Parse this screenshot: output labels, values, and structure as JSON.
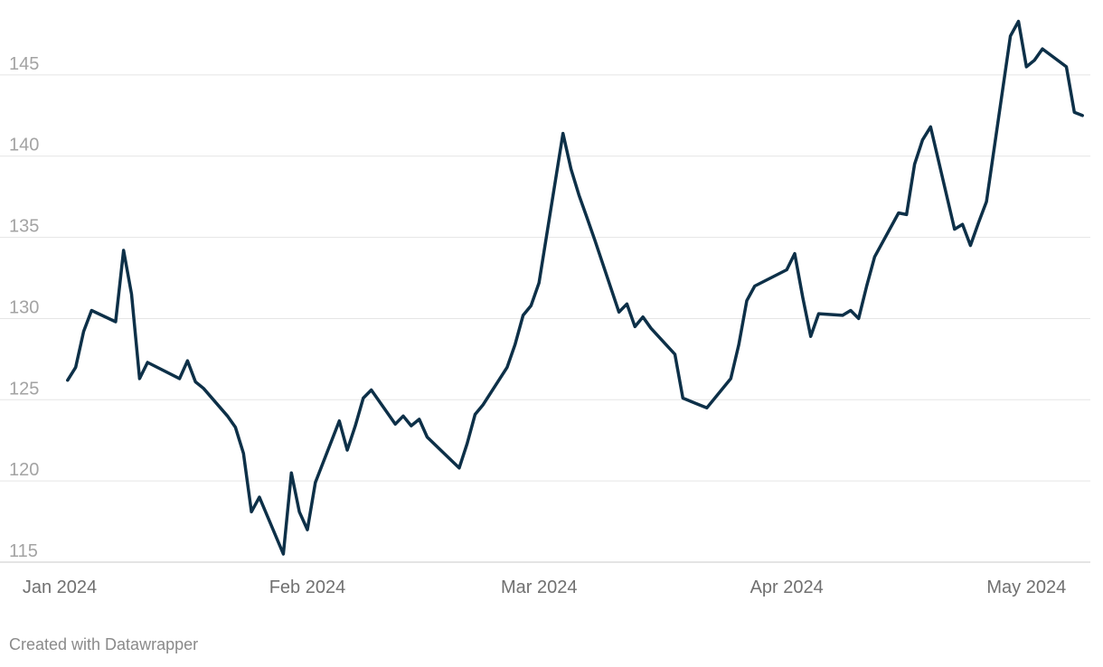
{
  "chart_data": {
    "type": "line",
    "title": "",
    "xlabel": "",
    "ylabel": "",
    "ylim": [
      115,
      148.5
    ],
    "xlim": [
      "2024-01-01",
      "2024-05-09"
    ],
    "y_ticks": [
      "115",
      "120",
      "125",
      "130",
      "135",
      "140",
      "145"
    ],
    "x_ticks": [
      {
        "label": "Jan 2024",
        "date": "2024-01-01"
      },
      {
        "label": "Feb 2024",
        "date": "2024-02-01"
      },
      {
        "label": "Mar 2024",
        "date": "2024-03-01"
      },
      {
        "label": "Apr 2024",
        "date": "2024-04-01"
      },
      {
        "label": "May 2024",
        "date": "2024-05-01"
      }
    ],
    "grid": true,
    "legend": "none",
    "colors": {
      "line": "#0d3048"
    },
    "series": [
      {
        "x": [
          "2024-01-02",
          "2024-01-03",
          "2024-01-04",
          "2024-01-05",
          "2024-01-08",
          "2024-01-09",
          "2024-01-10",
          "2024-01-11",
          "2024-01-12",
          "2024-01-16",
          "2024-01-17",
          "2024-01-18",
          "2024-01-19",
          "2024-01-22",
          "2024-01-23",
          "2024-01-24",
          "2024-01-25",
          "2024-01-26",
          "2024-01-29",
          "2024-01-30",
          "2024-01-31",
          "2024-02-01",
          "2024-02-02",
          "2024-02-05",
          "2024-02-06",
          "2024-02-07",
          "2024-02-08",
          "2024-02-09",
          "2024-02-12",
          "2024-02-13",
          "2024-02-14",
          "2024-02-15",
          "2024-02-16",
          "2024-02-20",
          "2024-02-21",
          "2024-02-22",
          "2024-02-23",
          "2024-02-26",
          "2024-02-27",
          "2024-02-28",
          "2024-02-29",
          "2024-03-01",
          "2024-03-04",
          "2024-03-05",
          "2024-03-06",
          "2024-03-07",
          "2024-03-08",
          "2024-03-11",
          "2024-03-12",
          "2024-03-13",
          "2024-03-14",
          "2024-03-15",
          "2024-03-18",
          "2024-03-19",
          "2024-03-20",
          "2024-03-21",
          "2024-03-22",
          "2024-03-25",
          "2024-03-26",
          "2024-03-27",
          "2024-03-28",
          "2024-04-01",
          "2024-04-02",
          "2024-04-03",
          "2024-04-04",
          "2024-04-05",
          "2024-04-08",
          "2024-04-09",
          "2024-04-10",
          "2024-04-11",
          "2024-04-12",
          "2024-04-15",
          "2024-04-16",
          "2024-04-17",
          "2024-04-18",
          "2024-04-19",
          "2024-04-22",
          "2024-04-23",
          "2024-04-24",
          "2024-04-25",
          "2024-04-26",
          "2024-04-29",
          "2024-04-30",
          "2024-05-01",
          "2024-05-02",
          "2024-05-03",
          "2024-05-06",
          "2024-05-07",
          "2024-05-08"
        ],
        "y": [
          126.2,
          127.0,
          129.2,
          130.5,
          129.8,
          134.2,
          131.5,
          126.3,
          127.3,
          126.3,
          127.4,
          126.1,
          125.7,
          124.0,
          123.3,
          121.7,
          118.1,
          119.0,
          115.5,
          120.5,
          118.1,
          117.0,
          119.9,
          123.7,
          121.9,
          123.4,
          125.1,
          125.6,
          123.5,
          124.0,
          123.4,
          123.8,
          122.7,
          120.8,
          122.3,
          124.1,
          124.7,
          127.0,
          128.4,
          130.2,
          130.8,
          132.2,
          141.4,
          139.2,
          137.6,
          136.2,
          134.8,
          130.4,
          130.9,
          129.5,
          130.1,
          129.4,
          127.8,
          125.1,
          124.9,
          124.7,
          124.5,
          126.3,
          128.4,
          131.1,
          132.0,
          133.0,
          134.0,
          131.3,
          128.9,
          130.3,
          130.2,
          130.5,
          130.0,
          132.0,
          133.8,
          136.5,
          136.4,
          139.5,
          141.0,
          141.8,
          135.5,
          135.8,
          134.5,
          135.9,
          137.2,
          147.4,
          148.3,
          145.5,
          145.9,
          146.6,
          145.5,
          142.7,
          142.5
        ]
      }
    ]
  },
  "footer": {
    "credit": "Created with Datawrapper"
  }
}
